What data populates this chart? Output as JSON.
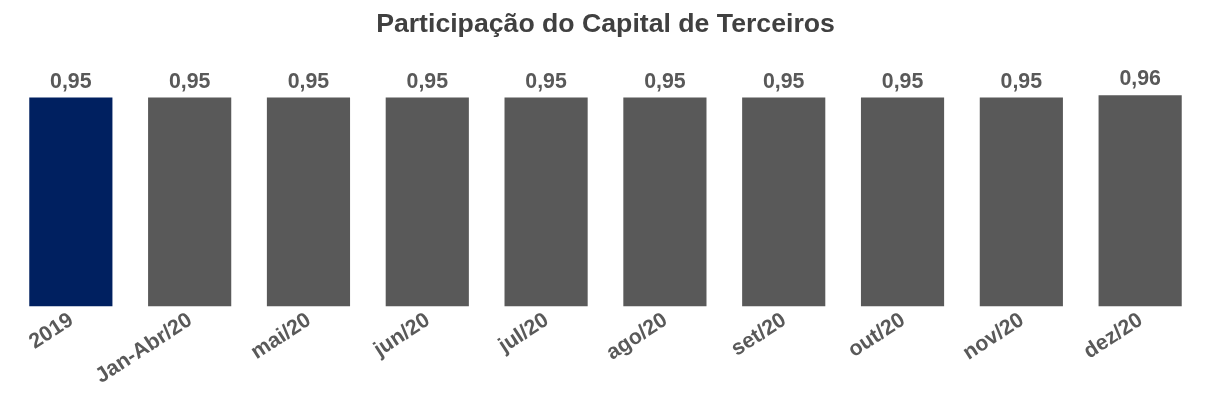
{
  "chart_data": {
    "type": "bar",
    "title": "Participação do Capital de Terceiros",
    "categories": [
      "2019",
      "Jan-Abr/20",
      "mai/20",
      "jun/20",
      "jul/20",
      "ago/20",
      "set/20",
      "out/20",
      "nov/20",
      "dez/20"
    ],
    "values": [
      0.95,
      0.95,
      0.95,
      0.95,
      0.95,
      0.95,
      0.95,
      0.95,
      0.95,
      0.96
    ],
    "colors": [
      "#002060",
      "#595959",
      "#595959",
      "#595959",
      "#595959",
      "#595959",
      "#595959",
      "#595959",
      "#595959",
      "#595959"
    ],
    "value_labels": [
      "0,95",
      "0,95",
      "0,95",
      "0,95",
      "0,95",
      "0,95",
      "0,95",
      "0,95",
      "0,95",
      "0,96"
    ],
    "grid": false
  }
}
